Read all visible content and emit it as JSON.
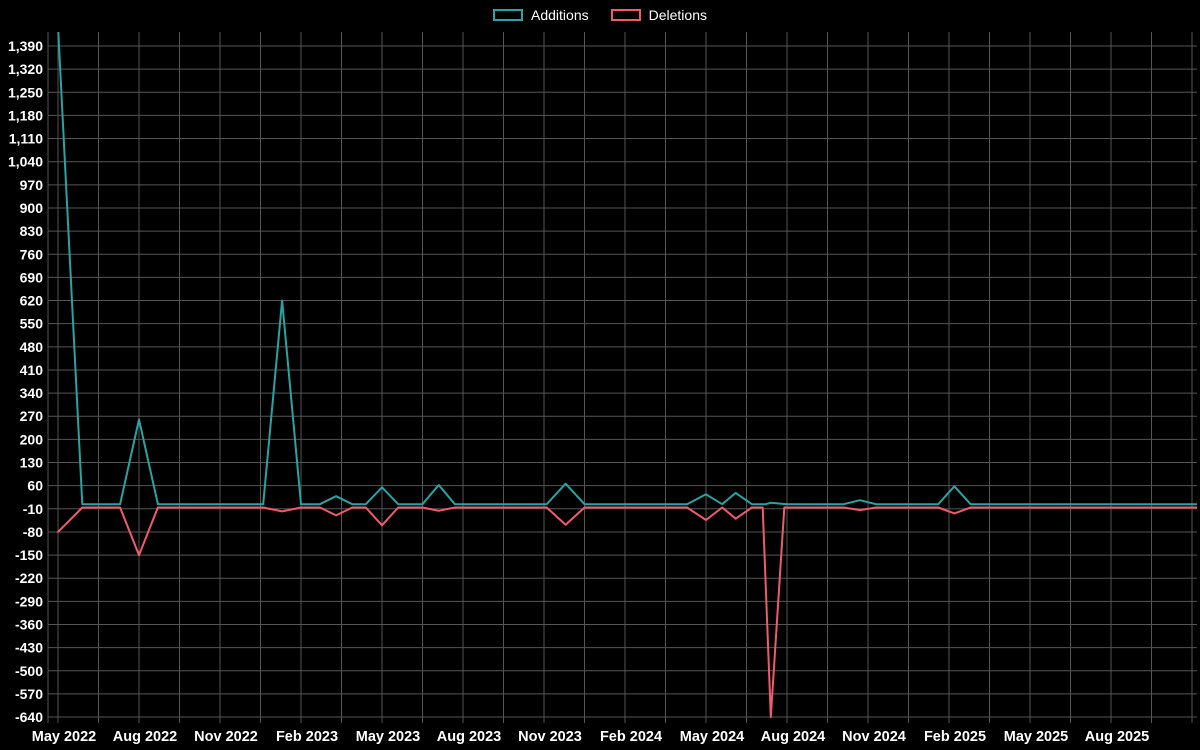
{
  "chart_data": {
    "type": "line",
    "title": "",
    "xlabel": "",
    "ylabel": "",
    "background_color": "#000000",
    "grid": true,
    "grid_color": "#555555",
    "text_color": "#ffffff",
    "legend_position": "top-center",
    "y_min": -640,
    "y_max": 1390,
    "y_step": 70,
    "y_tick_labels": [
      "1,390",
      "1,320",
      "1,250",
      "1,180",
      "1,110",
      "1,040",
      "970",
      "900",
      "830",
      "760",
      "690",
      "620",
      "550",
      "480",
      "410",
      "340",
      "270",
      "200",
      "130",
      "60",
      "-10",
      "-80",
      "-150",
      "-220",
      "-290",
      "-360",
      "-430",
      "-500",
      "-570",
      "-640"
    ],
    "x_tick_labels": [
      "May 2022",
      "Aug 2022",
      "Nov 2022",
      "Feb 2023",
      "May 2023",
      "Aug 2023",
      "Nov 2023",
      "Feb 2024",
      "May 2024",
      "Aug 2024",
      "Nov 2024",
      "Feb 2025",
      "May 2025",
      "Aug 2025"
    ],
    "x_tick_months": [
      0,
      3,
      6,
      9,
      12,
      15,
      18,
      21,
      24,
      27,
      30,
      33,
      36,
      39
    ],
    "x_range_months": [
      0,
      42.2
    ],
    "series": [
      {
        "name": "Additions",
        "color": "#2aa3a3",
        "points": [
          [
            0,
            1450
          ],
          [
            0.9,
            4
          ],
          [
            2.3,
            4
          ],
          [
            3,
            260
          ],
          [
            3.7,
            4
          ],
          [
            7.6,
            4
          ],
          [
            8.3,
            620
          ],
          [
            9.0,
            4
          ],
          [
            9.7,
            4
          ],
          [
            10.3,
            28
          ],
          [
            10.9,
            4
          ],
          [
            11.4,
            4
          ],
          [
            12.0,
            55
          ],
          [
            12.6,
            4
          ],
          [
            13.5,
            4
          ],
          [
            14.1,
            62
          ],
          [
            14.7,
            4
          ],
          [
            18.1,
            4
          ],
          [
            18.8,
            66
          ],
          [
            19.5,
            4
          ],
          [
            23.3,
            4
          ],
          [
            24.0,
            34
          ],
          [
            24.6,
            4
          ],
          [
            25.1,
            38
          ],
          [
            25.7,
            4
          ],
          [
            26.2,
            4
          ],
          [
            26.4,
            8
          ],
          [
            27.0,
            4
          ],
          [
            29.1,
            4
          ],
          [
            29.7,
            16
          ],
          [
            30.3,
            4
          ],
          [
            32.6,
            4
          ],
          [
            33.2,
            58
          ],
          [
            33.8,
            4
          ],
          [
            42.2,
            4
          ]
        ]
      },
      {
        "name": "Deletions",
        "color": "#ef5b6e",
        "points": [
          [
            0,
            -80
          ],
          [
            0.9,
            -6
          ],
          [
            2.3,
            -6
          ],
          [
            3,
            -150
          ],
          [
            3.7,
            -6
          ],
          [
            7.6,
            -6
          ],
          [
            8.3,
            -18
          ],
          [
            9.0,
            -6
          ],
          [
            9.7,
            -6
          ],
          [
            10.3,
            -30
          ],
          [
            10.9,
            -6
          ],
          [
            11.4,
            -6
          ],
          [
            12.0,
            -60
          ],
          [
            12.6,
            -6
          ],
          [
            13.5,
            -6
          ],
          [
            14.1,
            -16
          ],
          [
            14.7,
            -6
          ],
          [
            18.1,
            -6
          ],
          [
            18.8,
            -58
          ],
          [
            19.5,
            -6
          ],
          [
            23.3,
            -6
          ],
          [
            24.0,
            -44
          ],
          [
            24.6,
            -6
          ],
          [
            25.1,
            -40
          ],
          [
            25.7,
            -6
          ],
          [
            26.1,
            -6
          ],
          [
            26.4,
            -640
          ],
          [
            26.9,
            -6
          ],
          [
            29.1,
            -6
          ],
          [
            29.7,
            -14
          ],
          [
            30.3,
            -6
          ],
          [
            32.6,
            -6
          ],
          [
            33.2,
            -24
          ],
          [
            33.8,
            -6
          ],
          [
            42.2,
            -6
          ]
        ]
      }
    ]
  },
  "legend": {
    "additions_label": "Additions",
    "deletions_label": "Deletions"
  }
}
